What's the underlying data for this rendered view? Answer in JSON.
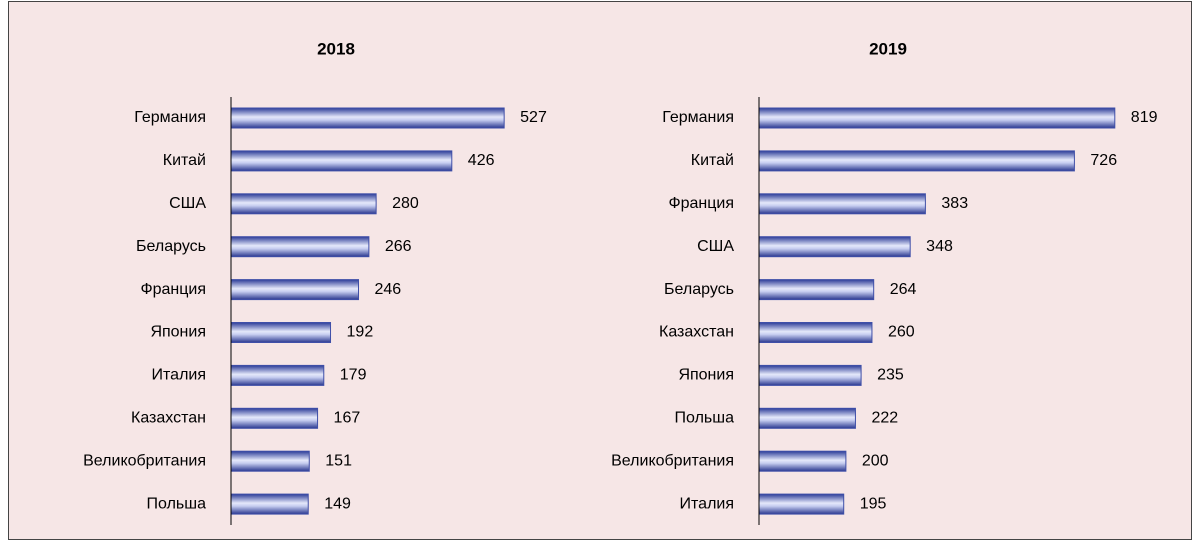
{
  "chart_data": [
    {
      "type": "bar",
      "orientation": "horizontal",
      "title": "2018",
      "categories": [
        "Германия",
        "Китай",
        "США",
        "Беларусь",
        "Франция",
        "Япония",
        "Италия",
        "Казахстан",
        "Великобритания",
        "Польша"
      ],
      "values": [
        527,
        426,
        280,
        266,
        246,
        192,
        179,
        167,
        151,
        149
      ],
      "color": "#3f4fa8",
      "xlim": [
        0,
        600
      ]
    },
    {
      "type": "bar",
      "orientation": "horizontal",
      "title": "2019",
      "categories": [
        "Германия",
        "Китай",
        "Франция",
        "США",
        "Беларусь",
        "Казахстан",
        "Япония",
        "Польша",
        "Великобритания",
        "Италия"
      ],
      "values": [
        819,
        726,
        383,
        348,
        264,
        260,
        235,
        222,
        200,
        195
      ],
      "color": "#3f4fa8",
      "xlim": [
        0,
        900
      ]
    }
  ]
}
